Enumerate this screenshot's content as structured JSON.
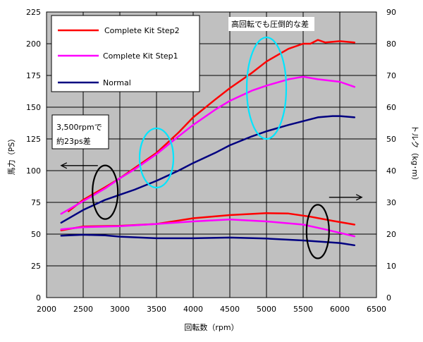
{
  "chart_data": {
    "type": "line",
    "x_axis": {
      "label": "回転数（rpm）",
      "min": 2000,
      "max": 6500,
      "ticks": [
        2000,
        2500,
        3000,
        3500,
        4000,
        4500,
        5000,
        5500,
        6000,
        6500
      ]
    },
    "y_left": {
      "label": "馬力（PS）",
      "min": 0,
      "max": 225,
      "ticks": [
        0,
        25,
        50,
        75,
        100,
        125,
        150,
        175,
        200,
        225
      ]
    },
    "y_right": {
      "label": "トルク（kg･m）",
      "min": 0,
      "max": 90,
      "ticks": [
        0,
        10,
        20,
        30,
        40,
        50,
        60,
        70,
        80,
        90
      ]
    },
    "grid": true,
    "plot_background": "#c0c0c0",
    "legend": {
      "placement": "top-left",
      "entries": [
        {
          "label": "Complete Kit Step2",
          "color": "#ff0000"
        },
        {
          "label": "Complete Kit Step1",
          "color": "#ff00ff"
        },
        {
          "label": "Normal",
          "color": "#000080"
        }
      ]
    },
    "series": [
      {
        "name": "Complete Kit Step2",
        "kind": "power",
        "axis": "left",
        "color": "#ff0000",
        "x": [
          2300,
          2500,
          2800,
          3000,
          3200,
          3500,
          3800,
          4000,
          4300,
          4500,
          4800,
          5000,
          5300,
          5500,
          5600,
          5700,
          5800,
          6000,
          6200
        ],
        "y": [
          68,
          77,
          87,
          94,
          102,
          114,
          130,
          142,
          156,
          165,
          177,
          186,
          196,
          200,
          200,
          203,
          201,
          202,
          201
        ]
      },
      {
        "name": "Complete Kit Step1",
        "kind": "power",
        "axis": "left",
        "color": "#ff00ff",
        "x": [
          2200,
          2500,
          2800,
          3000,
          3200,
          3500,
          3800,
          4000,
          4300,
          4500,
          4800,
          5000,
          5300,
          5500,
          5700,
          6000,
          6200
        ],
        "y": [
          66,
          76,
          86,
          94,
          101,
          113,
          127,
          136,
          148,
          155,
          163,
          167,
          172,
          174,
          172,
          170,
          166
        ]
      },
      {
        "name": "Normal",
        "kind": "power",
        "axis": "left",
        "color": "#000080",
        "x": [
          2200,
          2500,
          2800,
          3000,
          3200,
          3500,
          3800,
          4000,
          4300,
          4500,
          4800,
          5000,
          5300,
          5500,
          5700,
          5900,
          6000,
          6200
        ],
        "y": [
          59,
          69,
          77,
          81,
          85,
          92,
          100,
          106,
          114,
          120,
          127,
          131,
          136,
          139,
          142,
          143,
          143,
          142
        ]
      },
      {
        "name": "Complete Kit Step2",
        "kind": "torque",
        "axis": "right",
        "color": "#ff0000",
        "x": [
          2200,
          2500,
          3000,
          3500,
          4000,
          4500,
          5000,
          5300,
          5600,
          5900,
          6200
        ],
        "y": [
          21.2,
          22.4,
          22.6,
          23.2,
          25.0,
          26.0,
          26.6,
          26.5,
          25.5,
          24.2,
          23.0
        ]
      },
      {
        "name": "Complete Kit Step1",
        "kind": "torque",
        "axis": "right",
        "color": "#ff00ff",
        "x": [
          2200,
          2500,
          3000,
          3500,
          4000,
          4500,
          5000,
          5500,
          5800,
          6000,
          6200
        ],
        "y": [
          21.5,
          22.2,
          22.5,
          23.2,
          24.0,
          24.6,
          24.0,
          23.0,
          21.5,
          20.4,
          19.3
        ]
      },
      {
        "name": "Normal",
        "kind": "torque",
        "axis": "right",
        "color": "#000080",
        "x": [
          2200,
          2500,
          2800,
          3000,
          3500,
          4000,
          4500,
          5000,
          5500,
          6000,
          6200
        ],
        "y": [
          19.5,
          19.8,
          19.6,
          19.2,
          18.7,
          18.7,
          18.9,
          18.6,
          18.0,
          17.2,
          16.5
        ]
      }
    ],
    "annotations": [
      {
        "text": [
          "3,500rpmで",
          "約23ps差"
        ]
      },
      {
        "text": [
          "高回転でも圧倒的な差"
        ]
      }
    ],
    "highlights": [
      {
        "shape": "ellipse",
        "color": "#00e5ff",
        "x_center": 3500,
        "y_center_left": 110
      },
      {
        "shape": "ellipse",
        "color": "#00e5ff",
        "x_center": 5000,
        "y_center_left": 165
      },
      {
        "shape": "ellipse",
        "color": "#000000",
        "x_center": 2800,
        "y_center_left": 83
      },
      {
        "shape": "ellipse",
        "color": "#000000",
        "x_center": 5700,
        "y_center_left": 52
      }
    ]
  }
}
